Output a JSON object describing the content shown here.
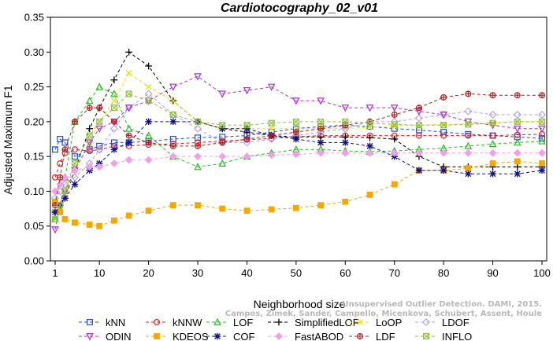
{
  "chart_data": {
    "type": "line",
    "title": "Cardiotocography_02_v01",
    "xlabel": "Neighborhood size",
    "ylabel": "Adjusted Maximum F1",
    "xlim": [
      1,
      100
    ],
    "ylim": [
      0,
      0.35
    ],
    "x_ticks": [
      1,
      10,
      20,
      30,
      40,
      50,
      60,
      70,
      80,
      90,
      100
    ],
    "y_ticks": [
      0.0,
      0.05,
      0.1,
      0.15,
      0.2,
      0.25,
      0.3,
      0.35
    ],
    "y_tick_labels": [
      "0.00",
      "0.05",
      "0.10",
      "0.15",
      "0.20",
      "0.25",
      "0.30",
      "0.35"
    ],
    "grid": false,
    "legend_position": "bottom",
    "sampled_x": [
      1,
      2,
      3,
      5,
      8,
      10,
      13,
      16,
      20,
      25,
      30,
      35,
      40,
      45,
      50,
      55,
      60,
      65,
      70,
      75,
      80,
      85,
      90,
      95,
      100
    ],
    "series": [
      {
        "name": "kNN",
        "color": "#1f4fd8",
        "marker": "square",
        "y": [
          0.16,
          0.175,
          0.17,
          0.15,
          0.16,
          0.165,
          0.17,
          0.17,
          0.172,
          0.175,
          0.177,
          0.178,
          0.18,
          0.185,
          0.19,
          0.193,
          0.195,
          0.193,
          0.19,
          0.188,
          0.185,
          0.182,
          0.18,
          0.178,
          0.176
        ]
      },
      {
        "name": "kNNW",
        "color": "#e02020",
        "marker": "circle",
        "y": [
          0.12,
          0.14,
          0.155,
          0.16,
          0.158,
          0.16,
          0.165,
          0.165,
          0.167,
          0.168,
          0.17,
          0.172,
          0.174,
          0.176,
          0.178,
          0.18,
          0.18,
          0.18,
          0.18,
          0.18,
          0.18,
          0.18,
          0.18,
          0.181,
          0.182
        ]
      },
      {
        "name": "LOF",
        "color": "#22c01a",
        "marker": "triangle-up",
        "y": [
          0.06,
          0.075,
          0.12,
          0.2,
          0.23,
          0.25,
          0.24,
          0.19,
          0.18,
          0.15,
          0.135,
          0.14,
          0.15,
          0.155,
          0.16,
          0.16,
          0.158,
          0.157,
          0.158,
          0.16,
          0.162,
          0.165,
          0.168,
          0.17,
          0.172
        ]
      },
      {
        "name": "SimplifiedLOF",
        "color": "#000000",
        "marker": "plus",
        "y": [
          0.07,
          0.08,
          0.09,
          0.13,
          0.19,
          0.22,
          0.26,
          0.3,
          0.28,
          0.23,
          0.2,
          0.19,
          0.185,
          0.18,
          0.178,
          0.178,
          0.178,
          0.177,
          0.175,
          0.15,
          0.135,
          0.135,
          0.135,
          0.135,
          0.135
        ]
      },
      {
        "name": "LoOP",
        "color": "#f0e000",
        "marker": "x",
        "y": [
          0.07,
          0.08,
          0.095,
          0.13,
          0.17,
          0.2,
          0.23,
          0.27,
          0.25,
          0.23,
          0.2,
          0.19,
          0.19,
          0.19,
          0.19,
          0.19,
          0.19,
          0.192,
          0.194,
          0.195,
          0.196,
          0.197,
          0.198,
          0.2,
          0.2
        ]
      },
      {
        "name": "LDOF",
        "color": "#b0a0e8",
        "marker": "diamond",
        "y": [
          0.09,
          0.1,
          0.11,
          0.12,
          0.14,
          0.16,
          0.19,
          0.22,
          0.24,
          0.21,
          0.19,
          0.17,
          0.17,
          0.175,
          0.18,
          0.185,
          0.19,
          0.2,
          0.2,
          0.205,
          0.21,
          0.215,
          0.21,
          0.21,
          0.21
        ]
      },
      {
        "name": "ODIN",
        "color": "#b030d0",
        "marker": "triangle-down",
        "y": [
          0.045,
          0.08,
          0.1,
          0.13,
          0.17,
          0.19,
          0.2,
          0.22,
          0.23,
          0.25,
          0.265,
          0.24,
          0.245,
          0.25,
          0.23,
          0.23,
          0.22,
          0.22,
          0.22,
          0.215,
          0.21,
          0.2,
          0.195,
          0.19,
          0.19
        ]
      },
      {
        "name": "KDEOS",
        "color": "#f5a800",
        "marker": "square-filled",
        "y": [
          0.085,
          0.07,
          0.06,
          0.055,
          0.052,
          0.05,
          0.058,
          0.065,
          0.072,
          0.08,
          0.08,
          0.075,
          0.072,
          0.074,
          0.076,
          0.08,
          0.085,
          0.095,
          0.11,
          0.13,
          0.13,
          0.133,
          0.14,
          0.143,
          0.14
        ]
      },
      {
        "name": "COF",
        "color": "#10108c",
        "marker": "asterisk",
        "y": [
          0.07,
          0.08,
          0.09,
          0.11,
          0.13,
          0.14,
          0.16,
          0.17,
          0.2,
          0.2,
          0.2,
          0.19,
          0.19,
          0.18,
          0.175,
          0.17,
          0.17,
          0.165,
          0.15,
          0.13,
          0.13,
          0.125,
          0.125,
          0.125,
          0.13
        ]
      },
      {
        "name": "FastABOD",
        "color": "#f0a0e8",
        "marker": "diamond-filled",
        "y": [
          0.1,
          0.11,
          0.12,
          0.13,
          0.135,
          0.135,
          0.14,
          0.145,
          0.145,
          0.15,
          0.15,
          0.15,
          0.15,
          0.152,
          0.153,
          0.155,
          0.155,
          0.155,
          0.155,
          0.155,
          0.155,
          0.155,
          0.155,
          0.155,
          0.155
        ]
      },
      {
        "name": "LDF",
        "color": "#b02020",
        "marker": "circle-plus",
        "y": [
          0.08,
          0.12,
          0.16,
          0.2,
          0.22,
          0.22,
          0.2,
          0.18,
          0.17,
          0.165,
          0.165,
          0.17,
          0.175,
          0.18,
          0.185,
          0.19,
          0.195,
          0.2,
          0.21,
          0.22,
          0.235,
          0.24,
          0.238,
          0.238,
          0.238
        ]
      },
      {
        "name": "INFLO",
        "color": "#90c040",
        "marker": "square-x",
        "y": [
          0.06,
          0.08,
          0.1,
          0.14,
          0.18,
          0.2,
          0.22,
          0.24,
          0.23,
          0.21,
          0.2,
          0.195,
          0.195,
          0.198,
          0.2,
          0.2,
          0.2,
          0.198,
          0.196,
          0.195,
          0.195,
          0.196,
          0.198,
          0.2,
          0.2
        ]
      }
    ]
  },
  "watermark": {
    "line1": "Unsupervised Outlier Detection. DAMI, 2015.",
    "line2": "Campos, Zimek, Sander, Campello, Micenkova, Schubert, Assent, Houle"
  }
}
